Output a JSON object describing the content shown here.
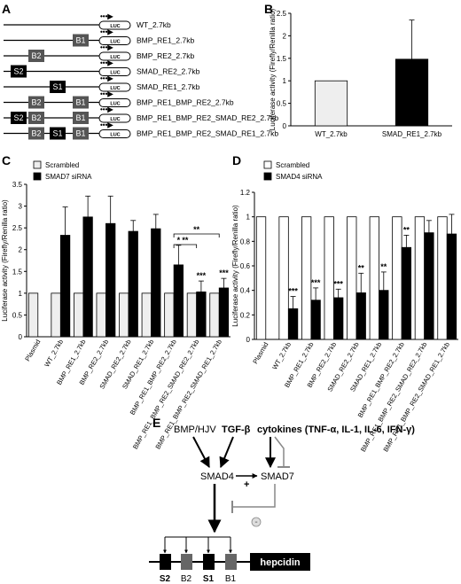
{
  "panels": {
    "A": {
      "label": "A"
    },
    "B": {
      "label": "B"
    },
    "C": {
      "label": "C"
    },
    "D": {
      "label": "D"
    },
    "E": {
      "label": "E"
    }
  },
  "construct_diagram": {
    "luc_label": "LUC",
    "constructs": [
      {
        "name": "WT_2.7kb",
        "elements": []
      },
      {
        "name": "BMP_RE1_2.7kb",
        "elements": [
          "B1"
        ]
      },
      {
        "name": "BMP_RE2_2.7kb",
        "elements": [
          "B2"
        ]
      },
      {
        "name": "SMAD_RE2_2.7kb",
        "elements": [
          "S2"
        ]
      },
      {
        "name": "SMAD_RE1_2.7kb",
        "elements": [
          "S1"
        ]
      },
      {
        "name": "BMP_RE1_BMP_RE2_2.7kb",
        "elements": [
          "B2",
          "B1"
        ]
      },
      {
        "name": "BMP_RE1_BMP_RE2_SMAD_RE2_2.7kb",
        "elements": [
          "S2",
          "B2",
          "B1"
        ]
      },
      {
        "name": "BMP_RE1_BMP_RE2_SMAD_RE1_2.7kb",
        "elements": [
          "B2",
          "S1",
          "B1"
        ]
      }
    ]
  },
  "chart_data": [
    {
      "panel": "B",
      "type": "bar",
      "categories": [
        "WT_2.7kb",
        "SMAD_RE1_2.7kb"
      ],
      "values": [
        1.0,
        1.48
      ],
      "error": [
        0,
        0.87
      ],
      "bar_colors": [
        "#eeeeee",
        "#000000"
      ],
      "ylabel": "Luciferase activity (Firefly/Renilla ratio)",
      "ylim": [
        0,
        2.5
      ],
      "yticks": [
        "0",
        "0.5",
        "1",
        "1.5",
        "2",
        "2.5"
      ],
      "grid": false
    },
    {
      "panel": "C",
      "type": "bar",
      "categories": [
        "Plasmid",
        "WT_2.7kb",
        "BMP_RE1_2.7kb",
        "BMP_RE2_2.7kb",
        "SMAD_RE2_2.7kb",
        "SMAD_RE1_2.7kb",
        "BMP_RE1_BMP_RE2_2.7kb",
        "BMP_RE1_BMP_RE2_SMAD_RE2_2.7kb",
        "BMP_RE1_BMP_RE2_SMAD_RE1_2.7kb"
      ],
      "series": [
        {
          "name": "Scrambled",
          "color": "#eeeeee",
          "values": [
            1,
            1,
            1,
            1,
            1,
            1,
            1,
            1,
            1
          ],
          "error": [
            0,
            0,
            0,
            0,
            0,
            0,
            0,
            0,
            0
          ]
        },
        {
          "name": "SMAD7 siRNA",
          "color": "#000000",
          "values": [
            null,
            2.33,
            2.75,
            2.6,
            2.42,
            2.48,
            1.65,
            1.03,
            1.12
          ],
          "error": [
            0,
            0.65,
            0.48,
            0.63,
            0.25,
            0.33,
            0.45,
            0.25,
            0.22
          ]
        }
      ],
      "sig": [
        "",
        "",
        "",
        "",
        "",
        "",
        "*",
        "***",
        "***"
      ],
      "brackets": [
        {
          "from": 6,
          "to": 7,
          "label": "**"
        },
        {
          "from": 6,
          "to": 8,
          "label": "**"
        }
      ],
      "ylabel": "Luciferase activity (Firefly/Renilla ratio)",
      "ylim": [
        0,
        3.5
      ],
      "yticks": [
        "0",
        "0.5",
        "1",
        "1.5",
        "2",
        "2.5",
        "3",
        "3.5"
      ],
      "legend_position": "top-left",
      "grid": false
    },
    {
      "panel": "D",
      "type": "bar",
      "categories": [
        "Plasmid",
        "WT_2.7kb",
        "BMP_RE1_2.7kb",
        "BMP_RE2_2.7kb",
        "SMAD_RE2_2.7kb",
        "SMAD_RE1_2.7kb",
        "BMP_RE1_BMP_RE2_2.7kb",
        "BMP_RE1_BMP_RE2_SMAD_RE2_2.7kb",
        "BMP_RE1_BMP_RE2_SMAD_RE1_2.7kb"
      ],
      "series": [
        {
          "name": "Scrambled",
          "color": "#ffffff",
          "values": [
            1,
            1,
            1,
            1,
            1,
            1,
            1,
            1,
            1
          ],
          "error": [
            0,
            0,
            0,
            0,
            0,
            0,
            0,
            0,
            0
          ]
        },
        {
          "name": "SMAD4 siRNA",
          "color": "#000000",
          "values": [
            null,
            0.25,
            0.32,
            0.34,
            0.38,
            0.4,
            0.75,
            0.87,
            0.86
          ],
          "error": [
            0,
            0.1,
            0.1,
            0.07,
            0.16,
            0.15,
            0.1,
            0.1,
            0.16
          ]
        }
      ],
      "sig": [
        "",
        "***",
        "***",
        "***",
        "**",
        "**",
        "**",
        "",
        ""
      ],
      "ylabel": "Luciferase activity (Firefly/Renilla ratio)",
      "ylim": [
        0,
        1.2
      ],
      "yticks": [
        "0",
        "0.2",
        "0.4",
        "0.6",
        "0.8",
        "1",
        "1.2"
      ],
      "legend_position": "top-left",
      "grid": false
    }
  ],
  "pathway": {
    "bmp_hjv": "BMP/HJV",
    "tgf_beta": "TGF-β",
    "cytokines": "cytokines (TNF-α, IL-1, IL-6, IFN-γ)",
    "smad4": "SMAD4",
    "smad7": "SMAD7",
    "plus": "+",
    "minus": "-",
    "hepcidin": "hepcidin",
    "elements": [
      "S2",
      "B2",
      "S1",
      "B1"
    ]
  }
}
